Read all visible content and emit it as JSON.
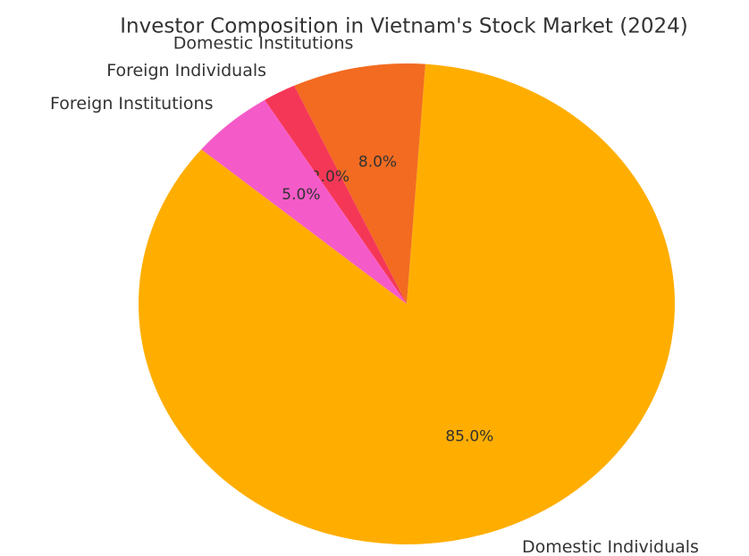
{
  "chart_data": {
    "type": "pie",
    "title": "Investor Composition in Vietnam's Stock Market (2024)",
    "categories": [
      "Domestic Individuals",
      "Domestic Institutions",
      "Foreign Individuals",
      "Foreign Institutions"
    ],
    "values": [
      85,
      8,
      2,
      5
    ],
    "value_labels": [
      "85.0%",
      "8.0%",
      "2.0%",
      "5.0%"
    ],
    "colors": [
      "#ffae00",
      "#f26b21",
      "#f53757",
      "#f55bc8"
    ],
    "startangle": 140
  }
}
